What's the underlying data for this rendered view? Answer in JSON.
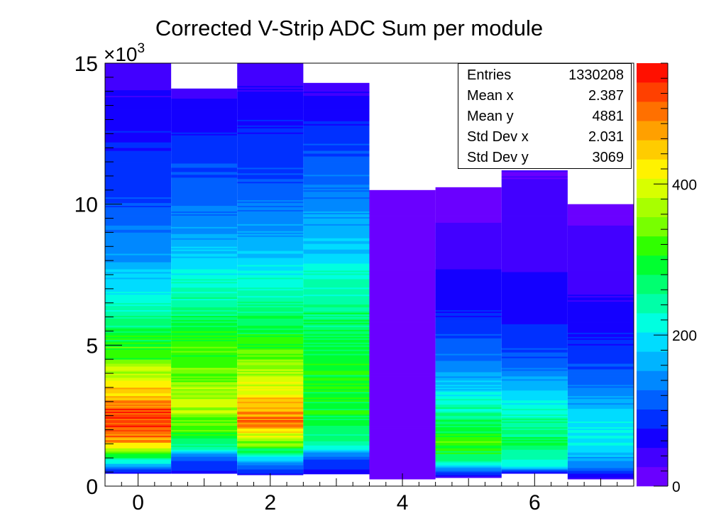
{
  "chart_data": {
    "type": "heatmap",
    "title": "Corrected V-Strip ADC Sum per module",
    "xlabel": "",
    "ylabel": "",
    "y_exponent_label": "×10",
    "y_exponent_power": "3",
    "xlim": [
      -0.5,
      7.5
    ],
    "ylim": [
      0,
      15000
    ],
    "zlim": [
      0,
      560
    ],
    "x_ticks": [
      "0",
      "2",
      "4",
      "6"
    ],
    "x_tick_values": [
      0,
      2,
      4,
      6
    ],
    "y_ticks": [
      "0",
      "5",
      "10",
      "15"
    ],
    "y_tick_values": [
      0,
      5000,
      10000,
      15000
    ],
    "z_ticks": [
      "0",
      "200",
      "400"
    ],
    "z_tick_values": [
      0,
      200,
      400
    ],
    "palette": [
      "#6a00ff",
      "#4200ff",
      "#1400ff",
      "#0030ff",
      "#0060ff",
      "#0088ff",
      "#00b4ff",
      "#00dcff",
      "#00ffe0",
      "#00ffa8",
      "#00ff70",
      "#00ff30",
      "#30ff00",
      "#78ff00",
      "#a8ff00",
      "#d8ff00",
      "#fff200",
      "#ffcc00",
      "#ffa000",
      "#ff7000",
      "#ff4000",
      "#ff1000"
    ],
    "modules": [
      {
        "x": 0,
        "ymin": 450,
        "ymax": 15000,
        "profile": [
          [
            0,
            5
          ],
          [
            450,
            60
          ],
          [
            900,
            220
          ],
          [
            1500,
            460
          ],
          [
            2400,
            540
          ],
          [
            3400,
            440
          ],
          [
            4500,
            330
          ],
          [
            6000,
            260
          ],
          [
            7000,
            200
          ],
          [
            8500,
            140
          ],
          [
            10000,
            100
          ],
          [
            12000,
            80
          ],
          [
            13500,
            60
          ],
          [
            15000,
            30
          ]
        ]
      },
      {
        "x": 1,
        "ymin": 450,
        "ymax": 14100,
        "profile": [
          [
            0,
            5
          ],
          [
            450,
            60
          ],
          [
            1000,
            120
          ],
          [
            1400,
            250
          ],
          [
            2000,
            330
          ],
          [
            3000,
            380
          ],
          [
            4000,
            340
          ],
          [
            5500,
            300
          ],
          [
            7000,
            230
          ],
          [
            8000,
            190
          ],
          [
            10000,
            120
          ],
          [
            12000,
            90
          ],
          [
            13000,
            70
          ],
          [
            14100,
            40
          ]
        ]
      },
      {
        "x": 2,
        "ymin": 400,
        "ymax": 15000,
        "profile": [
          [
            0,
            5
          ],
          [
            400,
            60
          ],
          [
            900,
            160
          ],
          [
            1400,
            320
          ],
          [
            2300,
            500
          ],
          [
            3300,
            430
          ],
          [
            3900,
            380
          ],
          [
            5000,
            310
          ],
          [
            7000,
            230
          ],
          [
            8500,
            170
          ],
          [
            10500,
            110
          ],
          [
            12500,
            80
          ],
          [
            13800,
            60
          ],
          [
            15000,
            25
          ]
        ]
      },
      {
        "x": 3,
        "ymin": 430,
        "ymax": 14300,
        "profile": [
          [
            0,
            5
          ],
          [
            430,
            60
          ],
          [
            900,
            100
          ],
          [
            1500,
            240
          ],
          [
            2500,
            300
          ],
          [
            4000,
            300
          ],
          [
            6000,
            270
          ],
          [
            7500,
            220
          ],
          [
            8500,
            180
          ],
          [
            10000,
            140
          ],
          [
            11500,
            110
          ],
          [
            12500,
            90
          ],
          [
            13500,
            60
          ],
          [
            14300,
            40
          ]
        ]
      },
      {
        "x": 4,
        "ymin": 250,
        "ymax": 10500,
        "profile": [
          [
            0,
            5
          ],
          [
            250,
            20
          ],
          [
            3000,
            15
          ],
          [
            7000,
            10
          ],
          [
            7200,
            4
          ],
          [
            10500,
            2
          ]
        ]
      },
      {
        "x": 5,
        "ymin": 300,
        "ymax": 10600,
        "profile": [
          [
            0,
            5
          ],
          [
            300,
            40
          ],
          [
            900,
            250
          ],
          [
            1500,
            330
          ],
          [
            2500,
            260
          ],
          [
            3500,
            180
          ],
          [
            4500,
            130
          ],
          [
            6000,
            80
          ],
          [
            8000,
            45
          ],
          [
            9300,
            30
          ],
          [
            9500,
            8
          ],
          [
            10600,
            2
          ]
        ]
      },
      {
        "x": 6,
        "ymin": 450,
        "ymax": 11200,
        "profile": [
          [
            0,
            5
          ],
          [
            450,
            40
          ],
          [
            700,
            200
          ],
          [
            1500,
            280
          ],
          [
            2500,
            240
          ],
          [
            3500,
            170
          ],
          [
            4500,
            110
          ],
          [
            6000,
            70
          ],
          [
            8500,
            40
          ],
          [
            11200,
            25
          ]
        ]
      },
      {
        "x": 7,
        "ymin": 250,
        "ymax": 10000,
        "profile": [
          [
            0,
            5
          ],
          [
            250,
            40
          ],
          [
            700,
            130
          ],
          [
            1500,
            210
          ],
          [
            2500,
            190
          ],
          [
            3500,
            130
          ],
          [
            5000,
            80
          ],
          [
            7000,
            45
          ],
          [
            9200,
            30
          ],
          [
            9400,
            8
          ],
          [
            10000,
            2
          ]
        ]
      }
    ]
  },
  "stats": {
    "rows": [
      {
        "key": "Entries",
        "value": "1330208"
      },
      {
        "key": "Mean x",
        "value": "2.387"
      },
      {
        "key": "Mean y",
        "value": "4881"
      },
      {
        "key": "Std Dev x",
        "value": "2.031"
      },
      {
        "key": "Std Dev y",
        "value": "3069"
      }
    ]
  }
}
